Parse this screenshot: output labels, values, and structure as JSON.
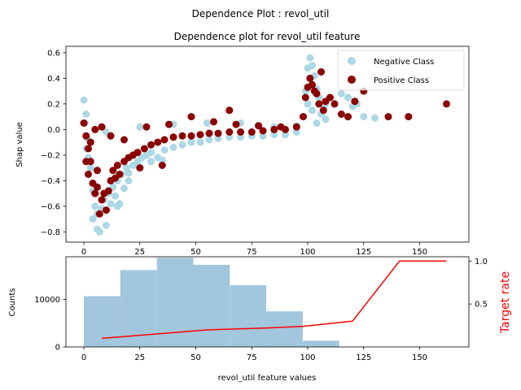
{
  "figure": {
    "suptitle": "Dependence Plot : revol_util"
  },
  "chart_data": [
    {
      "type": "scatter",
      "title": "Dependence plot for revol_util feature",
      "xlabel": "",
      "ylabel": "Shap value",
      "xlim": [
        -8,
        172
      ],
      "ylim": [
        -0.88,
        0.65
      ],
      "xticks": [
        0,
        25,
        50,
        75,
        100,
        125,
        150
      ],
      "yticks": [
        -0.8,
        -0.6,
        -0.4,
        -0.2,
        0.0,
        0.2,
        0.4,
        0.6
      ],
      "ytick_labels": [
        "−0.8",
        "−0.6",
        "−0.4",
        "−0.2",
        "0.0",
        "0.2",
        "0.4",
        "0.6"
      ],
      "legend_position": "top-right",
      "series": [
        {
          "name": "Negative Class",
          "color": "#add8e6",
          "points": [
            [
              0,
              0.23
            ],
            [
              1,
              0.12
            ],
            [
              0.5,
              0.05
            ],
            [
              2,
              -0.08
            ],
            [
              1,
              -0.15
            ],
            [
              3,
              -0.3
            ],
            [
              2,
              -0.22
            ],
            [
              4,
              -0.48
            ],
            [
              5,
              -0.6
            ],
            [
              4,
              -0.7
            ],
            [
              6,
              -0.78
            ],
            [
              7,
              -0.8
            ],
            [
              8,
              -0.62
            ],
            [
              9,
              -0.55
            ],
            [
              10,
              -0.75
            ],
            [
              6,
              -0.66
            ],
            [
              11,
              -0.5
            ],
            [
              12,
              -0.58
            ],
            [
              13,
              -0.45
            ],
            [
              14,
              -0.52
            ],
            [
              15,
              -0.4
            ],
            [
              16,
              -0.58
            ],
            [
              17,
              -0.35
            ],
            [
              18,
              -0.46
            ],
            [
              19,
              -0.3
            ],
            [
              20,
              -0.34
            ],
            [
              22,
              -0.28
            ],
            [
              24,
              -0.25
            ],
            [
              26,
              -0.22
            ],
            [
              28,
              -0.2
            ],
            [
              30,
              -0.18
            ],
            [
              33,
              -0.22
            ],
            [
              36,
              -0.16
            ],
            [
              40,
              -0.14
            ],
            [
              44,
              -0.12
            ],
            [
              48,
              -0.1
            ],
            [
              52,
              -0.1
            ],
            [
              56,
              -0.08
            ],
            [
              60,
              -0.07
            ],
            [
              65,
              -0.06
            ],
            [
              70,
              -0.06
            ],
            [
              75,
              -0.05
            ],
            [
              80,
              -0.05
            ],
            [
              85,
              -0.04
            ],
            [
              90,
              -0.04
            ],
            [
              95,
              -0.02
            ],
            [
              98,
              0.1
            ],
            [
              99,
              0.3
            ],
            [
              100,
              0.48
            ],
            [
              101,
              0.56
            ],
            [
              102,
              0.5
            ],
            [
              103,
              0.42
            ],
            [
              104,
              0.32
            ],
            [
              105,
              0.25
            ],
            [
              108,
              0.2
            ],
            [
              110,
              0.25
            ],
            [
              112,
              0.2
            ],
            [
              115,
              0.28
            ],
            [
              118,
              0.25
            ],
            [
              120,
              0.18
            ],
            [
              122,
              0.2
            ],
            [
              125,
              0.1
            ],
            [
              130,
              0.09
            ],
            [
              100,
              0.2
            ],
            [
              102,
              0.15
            ],
            [
              104,
              0.05
            ],
            [
              106,
              0.12
            ],
            [
              108,
              0.08
            ],
            [
              5,
              0.0
            ],
            [
              8,
              0.02
            ],
            [
              10,
              -0.02
            ],
            [
              25,
              0.02
            ],
            [
              40,
              0.04
            ],
            [
              55,
              0.05
            ],
            [
              70,
              0.05
            ],
            [
              85,
              0.02
            ],
            [
              95,
              0.03
            ],
            [
              30,
              -0.25
            ],
            [
              35,
              -0.24
            ],
            [
              20,
              -0.4
            ],
            [
              15,
              -0.6
            ]
          ]
        },
        {
          "name": "Positive Class",
          "color": "#8b0000",
          "points": [
            [
              0,
              0.05
            ],
            [
              1,
              -0.05
            ],
            [
              2,
              -0.15
            ],
            [
              3,
              -0.25
            ],
            [
              2,
              -0.35
            ],
            [
              4,
              -0.42
            ],
            [
              5,
              -0.5
            ],
            [
              6,
              -0.45
            ],
            [
              7,
              -0.66
            ],
            [
              8,
              -0.55
            ],
            [
              9,
              -0.5
            ],
            [
              10,
              -0.63
            ],
            [
              11,
              -0.48
            ],
            [
              12,
              -0.4
            ],
            [
              13,
              -0.32
            ],
            [
              14,
              -0.38
            ],
            [
              15,
              -0.28
            ],
            [
              16,
              -0.35
            ],
            [
              18,
              -0.25
            ],
            [
              20,
              -0.22
            ],
            [
              22,
              -0.2
            ],
            [
              24,
              -0.18
            ],
            [
              27,
              -0.15
            ],
            [
              30,
              -0.12
            ],
            [
              33,
              -0.1
            ],
            [
              36,
              -0.08
            ],
            [
              40,
              -0.06
            ],
            [
              44,
              -0.05
            ],
            [
              48,
              -0.05
            ],
            [
              52,
              -0.04
            ],
            [
              56,
              -0.03
            ],
            [
              60,
              -0.03
            ],
            [
              65,
              -0.02
            ],
            [
              70,
              -0.02
            ],
            [
              75,
              -0.02
            ],
            [
              80,
              -0.01
            ],
            [
              85,
              0.0
            ],
            [
              90,
              0.0
            ],
            [
              95,
              0.02
            ],
            [
              98,
              0.1
            ],
            [
              99,
              0.25
            ],
            [
              100,
              0.33
            ],
            [
              101,
              0.4
            ],
            [
              102,
              0.35
            ],
            [
              103,
              0.3
            ],
            [
              104,
              0.28
            ],
            [
              105,
              0.2
            ],
            [
              106,
              0.45
            ],
            [
              107,
              0.15
            ],
            [
              108,
              0.22
            ],
            [
              110,
              0.25
            ],
            [
              112,
              0.2
            ],
            [
              115,
              0.12
            ],
            [
              118,
              0.1
            ],
            [
              121,
              0.22
            ],
            [
              125,
              0.3
            ],
            [
              136,
              0.1
            ],
            [
              145,
              0.1
            ],
            [
              162,
              0.2
            ],
            [
              5,
              0.0
            ],
            [
              8,
              0.02
            ],
            [
              12,
              -0.05
            ],
            [
              18,
              -0.08
            ],
            [
              28,
              0.02
            ],
            [
              38,
              0.04
            ],
            [
              48,
              0.1
            ],
            [
              58,
              0.06
            ],
            [
              68,
              0.04
            ],
            [
              78,
              0.03
            ],
            [
              88,
              0.02
            ],
            [
              65,
              0.15
            ],
            [
              25,
              -0.3
            ],
            [
              35,
              -0.28
            ],
            [
              3,
              -0.1
            ],
            [
              1,
              -0.25
            ],
            [
              6,
              -0.32
            ]
          ]
        }
      ]
    },
    {
      "type": "bar",
      "xlabel": "revol_util feature values",
      "ylabel": "Counts",
      "y2label": "Target rate",
      "xlim": [
        -8,
        172
      ],
      "ylim": [
        0,
        19000
      ],
      "y2lim": [
        0,
        1.05
      ],
      "xticks": [
        0,
        25,
        50,
        75,
        100,
        125,
        150
      ],
      "yticks": [
        0,
        10000
      ],
      "y2ticks": [
        0.5,
        1.0
      ],
      "hist_color": "#a2c6de",
      "bins": [
        {
          "start": 0,
          "end": 16.3,
          "count": 10700
        },
        {
          "start": 16.3,
          "end": 32.6,
          "count": 16200
        },
        {
          "start": 32.6,
          "end": 48.9,
          "count": 18800
        },
        {
          "start": 48.9,
          "end": 65.2,
          "count": 17300
        },
        {
          "start": 65.2,
          "end": 81.5,
          "count": 13000
        },
        {
          "start": 81.5,
          "end": 97.8,
          "count": 7500
        },
        {
          "start": 97.8,
          "end": 114.1,
          "count": 1300
        }
      ],
      "series": [
        {
          "line_color": "#ff0000",
          "x": [
            8,
            32,
            56,
            81,
            98,
            120,
            141,
            162
          ],
          "y": [
            0.1,
            0.15,
            0.2,
            0.22,
            0.24,
            0.3,
            1.0,
            1.0
          ]
        }
      ]
    }
  ]
}
